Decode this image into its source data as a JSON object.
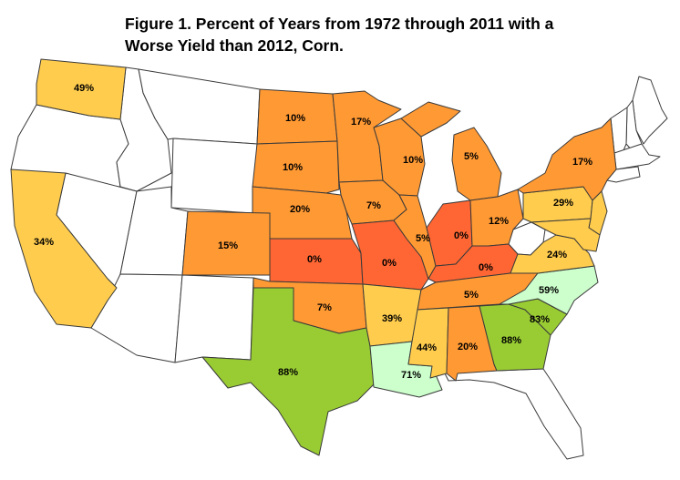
{
  "title": {
    "line1": "Figure 1. Percent of Years from 1972 through 2011 with a",
    "line2": "Worse Yield than 2012, Corn."
  },
  "colors": {
    "p0": "#ff6633",
    "p5_20": "#ff9933",
    "p24_49": "#ffcc4d",
    "p59_71": "#ccffcc",
    "p83_88": "#99cc33",
    "none": "#ffffff"
  },
  "states": [
    {
      "id": "WA",
      "value": "49%",
      "color": "p24_49"
    },
    {
      "id": "CA",
      "value": "34%",
      "color": "p24_49"
    },
    {
      "id": "ND",
      "value": "10%",
      "color": "p5_20"
    },
    {
      "id": "SD",
      "value": "10%",
      "color": "p5_20"
    },
    {
      "id": "NE",
      "value": "20%",
      "color": "p5_20"
    },
    {
      "id": "CO",
      "value": "15%",
      "color": "p5_20"
    },
    {
      "id": "KS",
      "value": "0%",
      "color": "p0"
    },
    {
      "id": "OK",
      "value": "7%",
      "color": "p5_20"
    },
    {
      "id": "TX",
      "value": "88%",
      "color": "p83_88"
    },
    {
      "id": "MN",
      "value": "17%",
      "color": "p5_20"
    },
    {
      "id": "IA",
      "value": "7%",
      "color": "p5_20"
    },
    {
      "id": "MO",
      "value": "0%",
      "color": "p0"
    },
    {
      "id": "AR",
      "value": "39%",
      "color": "p24_49"
    },
    {
      "id": "LA",
      "value": "71%",
      "color": "p59_71"
    },
    {
      "id": "WI",
      "value": "10%",
      "color": "p5_20"
    },
    {
      "id": "IL",
      "value": "5%",
      "color": "p5_20"
    },
    {
      "id": "MI",
      "value": "5%",
      "color": "p5_20"
    },
    {
      "id": "IN",
      "value": "0%",
      "color": "p0"
    },
    {
      "id": "OH",
      "value": "12%",
      "color": "p5_20"
    },
    {
      "id": "KY",
      "value": "0%",
      "color": "p0"
    },
    {
      "id": "TN",
      "value": "5%",
      "color": "p5_20"
    },
    {
      "id": "MS",
      "value": "44%",
      "color": "p24_49"
    },
    {
      "id": "AL",
      "value": "20%",
      "color": "p5_20"
    },
    {
      "id": "GA",
      "value": "88%",
      "color": "p83_88"
    },
    {
      "id": "SC",
      "value": "83%",
      "color": "p83_88"
    },
    {
      "id": "NC",
      "value": "59%",
      "color": "p59_71"
    },
    {
      "id": "VA",
      "value": "24%",
      "color": "p24_49"
    },
    {
      "id": "PA",
      "value": "29%",
      "color": "p24_49"
    },
    {
      "id": "NY",
      "value": "17%",
      "color": "p5_20"
    }
  ]
}
